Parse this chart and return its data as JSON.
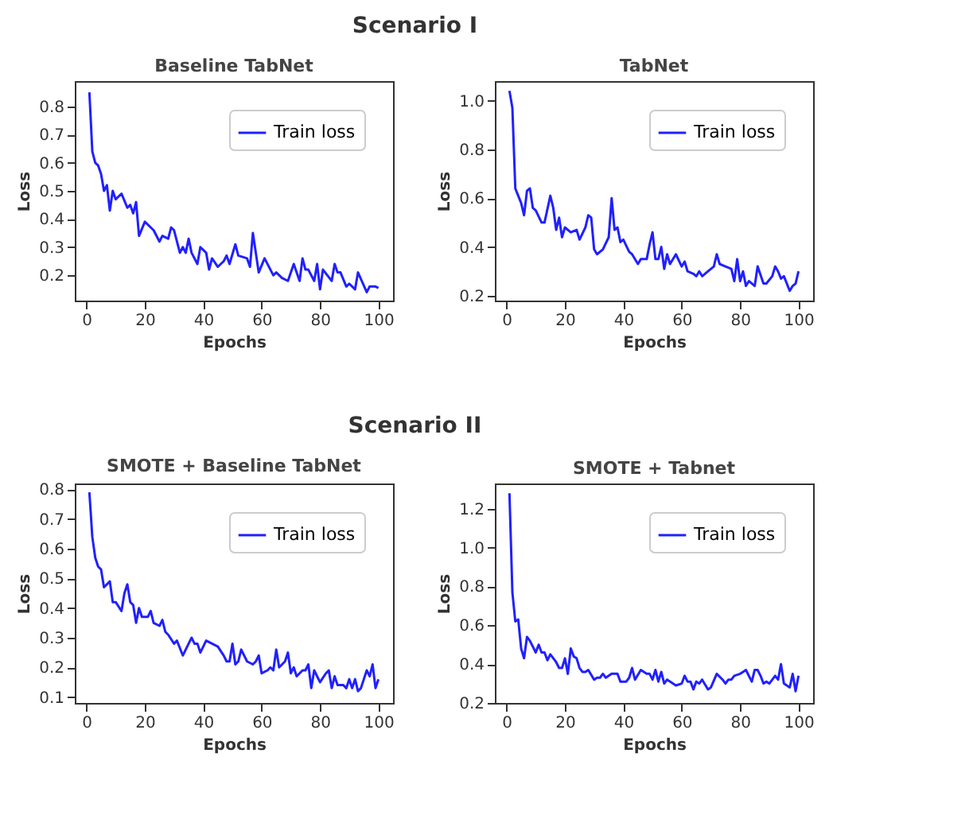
{
  "chart_data": [
    {
      "type": "line",
      "title": "Baseline TabNet",
      "xlabel": "Epochs",
      "ylabel": "Loss",
      "annotations": [
        "Scenario I"
      ],
      "xlim": [
        -4,
        105
      ],
      "xticks": [
        0,
        20,
        40,
        60,
        80,
        100
      ],
      "ylim": [
        0.11,
        0.89
      ],
      "yticks": [
        0.2,
        0.3,
        0.4,
        0.5,
        0.6,
        0.7,
        0.8
      ],
      "legend": "top right",
      "x": [
        1,
        2,
        3,
        4,
        5,
        6,
        7,
        8,
        9,
        10,
        12,
        14,
        15,
        16,
        17,
        18,
        20,
        22,
        23,
        25,
        26,
        28,
        29,
        30,
        32,
        33,
        34,
        35,
        36,
        38,
        39,
        41,
        42,
        43,
        45,
        47,
        48,
        49,
        51,
        52,
        55,
        56,
        57,
        59,
        61,
        64,
        65,
        67,
        69,
        71,
        73,
        74,
        75,
        76,
        78,
        79,
        80,
        81,
        84,
        85,
        86,
        87,
        89,
        90,
        92,
        93,
        96,
        97,
        99,
        100
      ],
      "series": [
        {
          "name": "Train loss",
          "color": "#2020ff",
          "values": [
            0.85,
            0.64,
            0.6,
            0.59,
            0.56,
            0.5,
            0.52,
            0.43,
            0.5,
            0.47,
            0.49,
            0.44,
            0.45,
            0.42,
            0.46,
            0.34,
            0.39,
            0.37,
            0.36,
            0.32,
            0.34,
            0.33,
            0.37,
            0.36,
            0.28,
            0.3,
            0.28,
            0.33,
            0.28,
            0.24,
            0.3,
            0.28,
            0.22,
            0.26,
            0.23,
            0.25,
            0.27,
            0.24,
            0.31,
            0.27,
            0.26,
            0.23,
            0.35,
            0.21,
            0.26,
            0.2,
            0.21,
            0.19,
            0.18,
            0.24,
            0.18,
            0.26,
            0.22,
            0.22,
            0.18,
            0.24,
            0.15,
            0.22,
            0.18,
            0.24,
            0.21,
            0.21,
            0.16,
            0.17,
            0.15,
            0.21,
            0.14,
            0.16,
            0.16,
            0.155
          ]
        }
      ]
    },
    {
      "type": "line",
      "title": "TabNet",
      "xlabel": "Epochs",
      "ylabel": "Loss",
      "xlim": [
        -4,
        105
      ],
      "xticks": [
        0,
        20,
        40,
        60,
        80,
        100
      ],
      "ylim": [
        0.18,
        1.08
      ],
      "yticks": [
        {
          "value": 0.2,
          "label": "0.2"
        },
        {
          "value": 0.4,
          "label": "0.4"
        },
        {
          "value": 0.6,
          "label": "0.6"
        },
        {
          "value": 0.8,
          "label": "0.8"
        },
        {
          "value": 1.0,
          "label": "1.0"
        }
      ],
      "legend": "top right",
      "x": [
        1,
        2,
        3,
        4,
        5,
        6,
        7,
        8,
        9,
        10,
        12,
        13,
        15,
        16,
        17,
        18,
        19,
        20,
        22,
        24,
        25,
        27,
        28,
        29,
        30,
        31,
        33,
        35,
        36,
        37,
        38,
        39,
        40,
        42,
        43,
        45,
        46,
        48,
        49,
        50,
        51,
        52,
        53,
        54,
        55,
        56,
        58,
        60,
        61,
        62,
        64,
        65,
        66,
        67,
        69,
        71,
        72,
        73,
        75,
        77,
        78,
        79,
        80,
        81,
        82,
        83,
        85,
        86,
        88,
        89,
        91,
        92,
        93,
        94,
        95,
        97,
        98,
        99,
        100
      ],
      "series": [
        {
          "name": "Train loss",
          "color": "#2020ff",
          "values": [
            1.04,
            0.97,
            0.64,
            0.61,
            0.58,
            0.53,
            0.63,
            0.64,
            0.56,
            0.55,
            0.5,
            0.5,
            0.61,
            0.56,
            0.47,
            0.52,
            0.44,
            0.48,
            0.46,
            0.47,
            0.43,
            0.48,
            0.53,
            0.52,
            0.39,
            0.37,
            0.39,
            0.44,
            0.6,
            0.47,
            0.48,
            0.42,
            0.43,
            0.38,
            0.37,
            0.33,
            0.35,
            0.35,
            0.41,
            0.46,
            0.35,
            0.35,
            0.4,
            0.31,
            0.37,
            0.33,
            0.37,
            0.32,
            0.34,
            0.3,
            0.29,
            0.28,
            0.3,
            0.28,
            0.3,
            0.32,
            0.37,
            0.33,
            0.32,
            0.31,
            0.26,
            0.35,
            0.26,
            0.3,
            0.24,
            0.26,
            0.24,
            0.32,
            0.25,
            0.25,
            0.28,
            0.32,
            0.3,
            0.27,
            0.28,
            0.22,
            0.24,
            0.25,
            0.3
          ]
        }
      ]
    },
    {
      "type": "line",
      "title": "SMOTE +  Baseline TabNet",
      "xlabel": "Epochs",
      "ylabel": "Loss",
      "annotations": [
        "Scenario II"
      ],
      "xlim": [
        -4,
        105
      ],
      "xticks": [
        0,
        20,
        40,
        60,
        80,
        100
      ],
      "ylim": [
        0.08,
        0.82
      ],
      "yticks": [
        0.1,
        0.2,
        0.3,
        0.4,
        0.5,
        0.6,
        0.7,
        0.8
      ],
      "legend": "top right",
      "x": [
        1,
        2,
        3,
        4,
        5,
        6,
        8,
        9,
        10,
        12,
        13,
        14,
        15,
        16,
        17,
        18,
        19,
        21,
        22,
        23,
        25,
        26,
        27,
        28,
        30,
        31,
        33,
        35,
        36,
        37,
        38,
        39,
        41,
        43,
        45,
        47,
        48,
        49,
        50,
        51,
        52,
        53,
        55,
        57,
        58,
        59,
        60,
        62,
        63,
        64,
        65,
        66,
        68,
        69,
        70,
        71,
        72,
        74,
        75,
        76,
        77,
        78,
        80,
        82,
        83,
        84,
        85,
        86,
        88,
        89,
        90,
        91,
        92,
        93,
        94,
        96,
        97,
        98,
        99,
        100
      ],
      "series": [
        {
          "name": "Train loss",
          "color": "#2020ff",
          "values": [
            0.79,
            0.64,
            0.57,
            0.54,
            0.53,
            0.47,
            0.49,
            0.42,
            0.42,
            0.39,
            0.45,
            0.48,
            0.42,
            0.41,
            0.35,
            0.4,
            0.37,
            0.37,
            0.39,
            0.35,
            0.34,
            0.36,
            0.32,
            0.31,
            0.28,
            0.29,
            0.24,
            0.28,
            0.3,
            0.28,
            0.28,
            0.25,
            0.29,
            0.28,
            0.27,
            0.24,
            0.22,
            0.22,
            0.28,
            0.21,
            0.22,
            0.26,
            0.22,
            0.21,
            0.22,
            0.24,
            0.18,
            0.19,
            0.2,
            0.19,
            0.26,
            0.2,
            0.22,
            0.25,
            0.18,
            0.2,
            0.17,
            0.19,
            0.19,
            0.21,
            0.13,
            0.19,
            0.15,
            0.18,
            0.19,
            0.13,
            0.17,
            0.14,
            0.14,
            0.13,
            0.16,
            0.13,
            0.16,
            0.12,
            0.13,
            0.19,
            0.17,
            0.21,
            0.13,
            0.16
          ]
        }
      ]
    },
    {
      "type": "line",
      "title": "SMOTE + Tabnet",
      "xlabel": "Epochs",
      "ylabel": "Loss",
      "xlim": [
        -4,
        105
      ],
      "xticks": [
        0,
        20,
        40,
        60,
        80,
        100
      ],
      "ylim": [
        0.2,
        1.33
      ],
      "yticks": [
        {
          "value": 0.2,
          "label": "0.2"
        },
        {
          "value": 0.4,
          "label": "0.4"
        },
        {
          "value": 0.6,
          "label": "0.6"
        },
        {
          "value": 0.8,
          "label": "0.8"
        },
        {
          "value": 1.0,
          "label": "1.0"
        },
        {
          "value": 1.2,
          "label": "1.2"
        }
      ],
      "legend": "top right",
      "x": [
        1,
        2,
        3,
        4,
        5,
        6,
        7,
        8,
        9,
        10,
        11,
        12,
        13,
        14,
        15,
        17,
        18,
        19,
        20,
        21,
        22,
        23,
        24,
        25,
        26,
        27,
        28,
        30,
        31,
        32,
        33,
        34,
        36,
        38,
        39,
        41,
        42,
        43,
        44,
        46,
        48,
        49,
        50,
        51,
        52,
        53,
        54,
        55,
        57,
        58,
        60,
        61,
        62,
        63,
        64,
        65,
        66,
        67,
        69,
        70,
        72,
        74,
        75,
        76,
        77,
        78,
        80,
        81,
        82,
        83,
        84,
        85,
        86,
        87,
        88,
        89,
        90,
        92,
        93,
        94,
        95,
        96,
        97,
        98,
        99,
        100
      ],
      "series": [
        {
          "name": "Train loss",
          "color": "#2020ff",
          "values": [
            1.28,
            0.77,
            0.62,
            0.63,
            0.48,
            0.43,
            0.54,
            0.52,
            0.49,
            0.46,
            0.5,
            0.46,
            0.46,
            0.42,
            0.45,
            0.41,
            0.38,
            0.38,
            0.43,
            0.35,
            0.48,
            0.44,
            0.43,
            0.38,
            0.36,
            0.36,
            0.37,
            0.32,
            0.33,
            0.33,
            0.35,
            0.33,
            0.35,
            0.35,
            0.31,
            0.31,
            0.33,
            0.38,
            0.32,
            0.37,
            0.35,
            0.35,
            0.32,
            0.37,
            0.31,
            0.36,
            0.3,
            0.32,
            0.3,
            0.29,
            0.3,
            0.34,
            0.31,
            0.31,
            0.27,
            0.31,
            0.3,
            0.32,
            0.27,
            0.28,
            0.35,
            0.32,
            0.3,
            0.32,
            0.32,
            0.34,
            0.35,
            0.36,
            0.37,
            0.34,
            0.31,
            0.37,
            0.37,
            0.34,
            0.3,
            0.31,
            0.3,
            0.34,
            0.32,
            0.4,
            0.3,
            0.29,
            0.28,
            0.35,
            0.26,
            0.34
          ]
        }
      ]
    }
  ]
}
